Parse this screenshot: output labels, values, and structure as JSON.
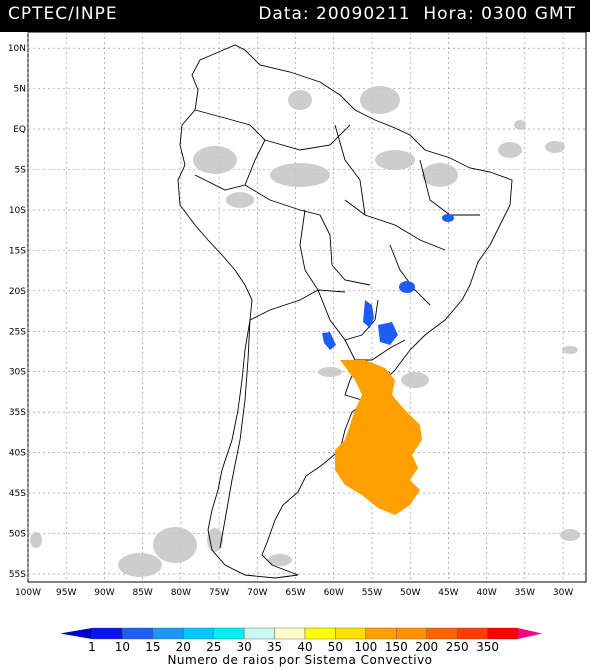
{
  "header": {
    "source": "CPTEC/INPE",
    "datetime": "Data: 20090211  Hora: 0300 GMT"
  },
  "map": {
    "lon_min": -100,
    "lon_max": -27,
    "lat_min": -56,
    "lat_max": 12,
    "lat_labels": [
      "10N",
      "5N",
      "EQ",
      "5S",
      "10S",
      "15S",
      "20S",
      "25S",
      "30S",
      "35S",
      "40S",
      "45S",
      "50S",
      "55S"
    ],
    "lat_values": [
      10,
      5,
      0,
      -5,
      -10,
      -15,
      -20,
      -25,
      -30,
      -35,
      -40,
      -45,
      -50,
      -55
    ],
    "lon_labels": [
      "100W",
      "95W",
      "90W",
      "85W",
      "80W",
      "75W",
      "70W",
      "65W",
      "60W",
      "55W",
      "50W",
      "45W",
      "40W",
      "35W",
      "30W"
    ],
    "lon_values": [
      -100,
      -95,
      -90,
      -85,
      -80,
      -75,
      -70,
      -65,
      -60,
      -55,
      -50,
      -45,
      -40,
      -35,
      -30
    ]
  },
  "legend": {
    "title": "Numero de raios por Sistema Convectivo",
    "values": [
      "1",
      "10",
      "15",
      "20",
      "25",
      "30",
      "35",
      "40",
      "50",
      "100",
      "150",
      "200",
      "250",
      "350"
    ],
    "colors": [
      "#0a14f0",
      "#1e5cf5",
      "#1e96f5",
      "#00c8ff",
      "#00f0f0",
      "#c8f8f0",
      "#fffac8",
      "#ffff00",
      "#ffe000",
      "#ffa000",
      "#ff9000",
      "#ff6400",
      "#ff3c00",
      "#ff0000"
    ],
    "left_arrow_color": "#0000c8",
    "right_arrow_color": "#ff0080"
  },
  "systems": [
    {
      "name": "convective-system-bahia",
      "color": "#1e5cf5"
    },
    {
      "name": "convective-system-minas",
      "color": "#1e5cf5"
    },
    {
      "name": "convective-system-mato-grosso-sul",
      "color": "#1e5cf5"
    },
    {
      "name": "convective-system-parana",
      "color": "#1e5cf5"
    },
    {
      "name": "convective-system-paraguay",
      "color": "#1e5cf5"
    },
    {
      "name": "convective-system-south-atlantic",
      "color": "#ffa000"
    }
  ]
}
